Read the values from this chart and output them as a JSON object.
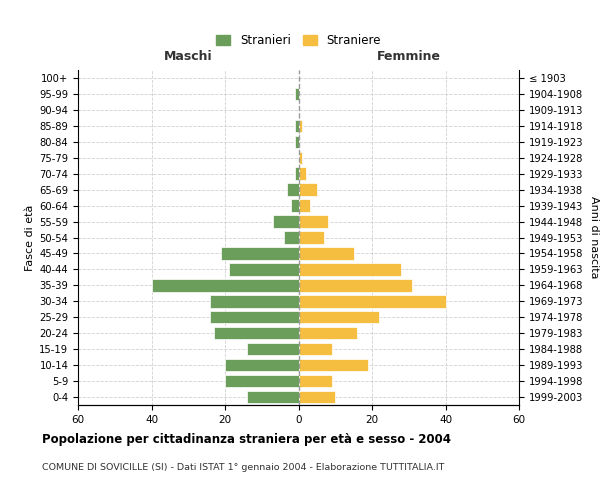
{
  "age_groups": [
    "0-4",
    "5-9",
    "10-14",
    "15-19",
    "20-24",
    "25-29",
    "30-34",
    "35-39",
    "40-44",
    "45-49",
    "50-54",
    "55-59",
    "60-64",
    "65-69",
    "70-74",
    "75-79",
    "80-84",
    "85-89",
    "90-94",
    "95-99",
    "100+"
  ],
  "birth_years": [
    "1999-2003",
    "1994-1998",
    "1989-1993",
    "1984-1988",
    "1979-1983",
    "1974-1978",
    "1969-1973",
    "1964-1968",
    "1959-1963",
    "1954-1958",
    "1949-1953",
    "1944-1948",
    "1939-1943",
    "1934-1938",
    "1929-1933",
    "1924-1928",
    "1919-1923",
    "1914-1918",
    "1909-1913",
    "1904-1908",
    "≤ 1903"
  ],
  "males": [
    14,
    20,
    20,
    14,
    23,
    24,
    24,
    40,
    19,
    21,
    4,
    7,
    2,
    3,
    1,
    0,
    1,
    1,
    0,
    1,
    0
  ],
  "females": [
    10,
    9,
    19,
    9,
    16,
    22,
    40,
    31,
    28,
    15,
    7,
    8,
    3,
    5,
    2,
    1,
    0,
    1,
    0,
    0,
    0
  ],
  "male_color": "#6a9e5a",
  "female_color": "#f5be41",
  "bar_edge_color": "#ffffff",
  "grid_color": "#cccccc",
  "dashed_line_color": "#999999",
  "background_color": "#ffffff",
  "title": "Popolazione per cittadinanza straniera per età e sesso - 2004",
  "subtitle": "COMUNE DI SOVICILLE (SI) - Dati ISTAT 1° gennaio 2004 - Elaborazione TUTTITALIA.IT",
  "xlabel_left": "Maschi",
  "xlabel_right": "Femmine",
  "ylabel_left": "Fasce di età",
  "ylabel_right": "Anni di nascita",
  "legend_male": "Stranieri",
  "legend_female": "Straniere",
  "xlim": 60
}
